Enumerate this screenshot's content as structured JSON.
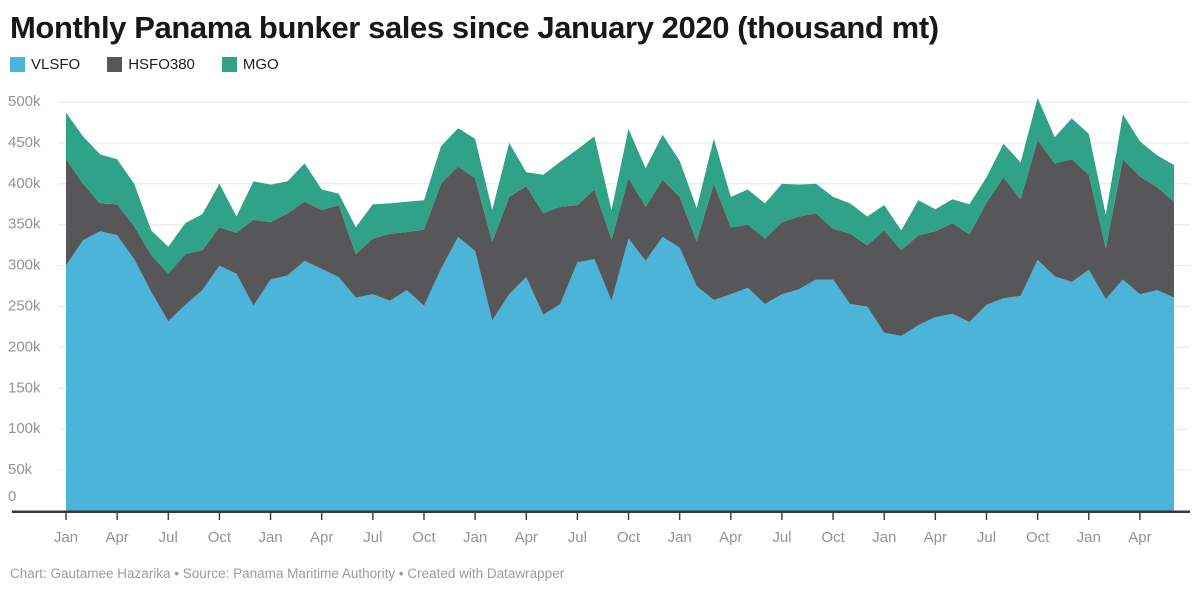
{
  "header": {
    "title": "Monthly Panama bunker sales since January 2020 (thousand mt)"
  },
  "legend": [
    {
      "label": "VLSFO",
      "color": "#4bb4d8"
    },
    {
      "label": "HSFO380",
      "color": "#575759"
    },
    {
      "label": "MGO",
      "color": "#2fa287"
    }
  ],
  "footer": {
    "text": "Chart: Gautamee Hazarika  • Source: Panama Maritime Authority • Created with Datawrapper"
  },
  "colors": {
    "background": "#ffffff",
    "grid": "#e6e6e6",
    "axis_line": "#393939",
    "tick_mark": "#393939",
    "axis_label": "#949494",
    "title_text": "#181818",
    "footer_text": "#9b9b9b"
  },
  "chart_data": {
    "type": "area",
    "stacked": true,
    "title": "Monthly Panama bunker sales since January 2020 (thousand mt)",
    "xlabel": "",
    "ylabel": "",
    "unit_suffix": "k",
    "ylim": [
      0,
      500
    ],
    "grid": true,
    "legend_position": "top-left",
    "start_month": "2020-01",
    "end_month": "2025-06",
    "months": [
      "2020-01",
      "2020-02",
      "2020-03",
      "2020-04",
      "2020-05",
      "2020-06",
      "2020-07",
      "2020-08",
      "2020-09",
      "2020-10",
      "2020-11",
      "2020-12",
      "2021-01",
      "2021-02",
      "2021-03",
      "2021-04",
      "2021-05",
      "2021-06",
      "2021-07",
      "2021-08",
      "2021-09",
      "2021-10",
      "2021-11",
      "2021-12",
      "2022-01",
      "2022-02",
      "2022-03",
      "2022-04",
      "2022-05",
      "2022-06",
      "2022-07",
      "2022-08",
      "2022-09",
      "2022-10",
      "2022-11",
      "2022-12",
      "2023-01",
      "2023-02",
      "2023-03",
      "2023-04",
      "2023-05",
      "2023-06",
      "2023-07",
      "2023-08",
      "2023-09",
      "2023-10",
      "2023-11",
      "2023-12",
      "2024-01",
      "2024-02",
      "2024-03",
      "2024-04",
      "2024-05",
      "2024-06",
      "2024-07",
      "2024-08",
      "2024-09",
      "2024-10",
      "2024-11",
      "2024-12",
      "2025-01",
      "2025-02",
      "2025-03",
      "2025-04",
      "2025-05",
      "2025-06"
    ],
    "series": [
      {
        "name": "VLSFO",
        "color": "#4bb4d8",
        "values": [
          300,
          331,
          342,
          337,
          308,
          268,
          232,
          252,
          270,
          300,
          290,
          251,
          283,
          288,
          306,
          296,
          286,
          261,
          265,
          257,
          270,
          251,
          296,
          335,
          318,
          233,
          265,
          286,
          240,
          253,
          304,
          308,
          257,
          333,
          306,
          335,
          322,
          275,
          258,
          265,
          273,
          253,
          265,
          271,
          283,
          283,
          253,
          250,
          218,
          214,
          227,
          237,
          241,
          231,
          252,
          260,
          263,
          307,
          287,
          280,
          295,
          259,
          283,
          265,
          270,
          261
        ]
      },
      {
        "name": "HSFO380",
        "color": "#575759",
        "values": [
          130,
          69,
          34,
          38,
          40,
          45,
          58,
          62,
          49,
          47,
          50,
          105,
          70,
          76,
          72,
          72,
          88,
          53,
          68,
          82,
          71,
          93,
          104,
          86,
          89,
          96,
          119,
          111,
          124,
          119,
          70,
          85,
          75,
          74,
          66,
          70,
          62,
          55,
          142,
          82,
          77,
          80,
          88,
          89,
          81,
          62,
          86,
          75,
          125,
          105,
          110,
          105,
          111,
          107,
          125,
          148,
          118,
          146,
          138,
          150,
          116,
          62,
          147,
          144,
          126,
          117
        ]
      },
      {
        "name": "MGO",
        "color": "#2fa287",
        "values": [
          57,
          58,
          60,
          55,
          52,
          30,
          33,
          38,
          44,
          53,
          20,
          47,
          46,
          39,
          47,
          25,
          14,
          33,
          42,
          37,
          37,
          36,
          46,
          47,
          48,
          39,
          66,
          17,
          47,
          55,
          68,
          65,
          36,
          60,
          47,
          55,
          44,
          40,
          55,
          37,
          43,
          43,
          47,
          39,
          36,
          39,
          37,
          35,
          31,
          24,
          43,
          27,
          29,
          37,
          31,
          41,
          45,
          52,
          32,
          50,
          50,
          41,
          55,
          43,
          39,
          45
        ]
      }
    ],
    "y_ticks": [
      {
        "value": 0,
        "label": "0"
      },
      {
        "value": 50,
        "label": "50k"
      },
      {
        "value": 100,
        "label": "100k"
      },
      {
        "value": 150,
        "label": "150k"
      },
      {
        "value": 200,
        "label": "200k"
      },
      {
        "value": 250,
        "label": "250k"
      },
      {
        "value": 300,
        "label": "300k"
      },
      {
        "value": 350,
        "label": "350k"
      },
      {
        "value": 400,
        "label": "400k"
      },
      {
        "value": 450,
        "label": "450k"
      },
      {
        "value": 500,
        "label": "500k"
      }
    ],
    "x_ticks": [
      {
        "index": 0,
        "label": "Jan"
      },
      {
        "index": 3,
        "label": "Apr"
      },
      {
        "index": 6,
        "label": "Jul"
      },
      {
        "index": 9,
        "label": "Oct"
      },
      {
        "index": 12,
        "label": "Jan"
      },
      {
        "index": 15,
        "label": "Apr"
      },
      {
        "index": 18,
        "label": "Jul"
      },
      {
        "index": 21,
        "label": "Oct"
      },
      {
        "index": 24,
        "label": "Jan"
      },
      {
        "index": 27,
        "label": "Apr"
      },
      {
        "index": 30,
        "label": "Jul"
      },
      {
        "index": 33,
        "label": "Oct"
      },
      {
        "index": 36,
        "label": "Jan"
      },
      {
        "index": 39,
        "label": "Apr"
      },
      {
        "index": 42,
        "label": "Jul"
      },
      {
        "index": 45,
        "label": "Oct"
      },
      {
        "index": 48,
        "label": "Jan"
      },
      {
        "index": 51,
        "label": "Apr"
      },
      {
        "index": 54,
        "label": "Jul"
      },
      {
        "index": 57,
        "label": "Oct"
      },
      {
        "index": 60,
        "label": "Jan"
      },
      {
        "index": 63,
        "label": "Apr"
      }
    ]
  }
}
